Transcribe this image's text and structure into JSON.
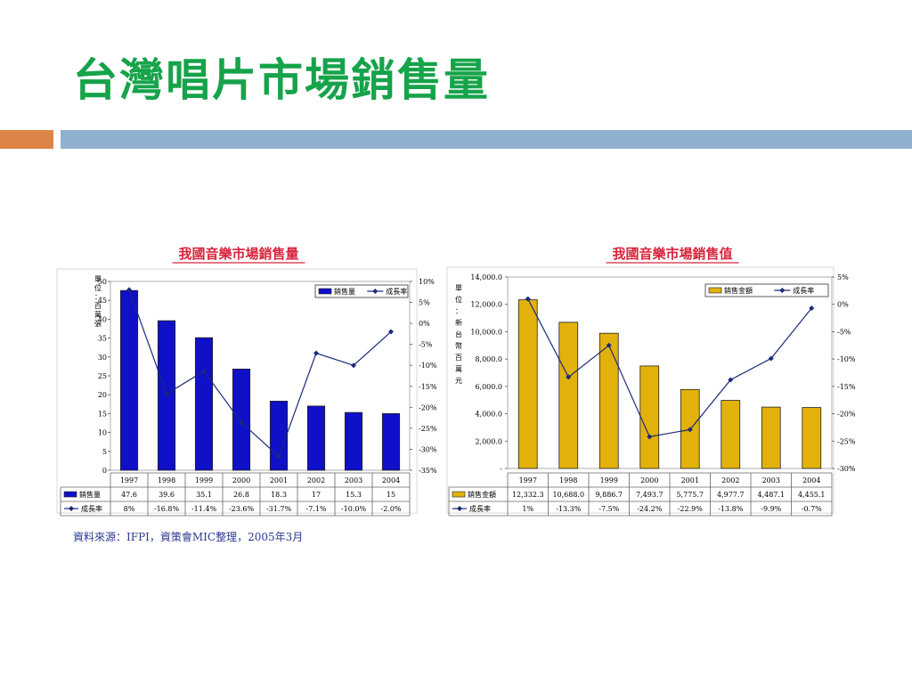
{
  "slide": {
    "title": "台灣唱片市場銷售量",
    "source": "資料來源：IFPI，資策會MIC整理，2005年3月"
  },
  "chart_data": [
    {
      "type": "bar",
      "title": "我國音樂市場銷售量",
      "ylabel_left": "單位：百萬張",
      "categories": [
        "1997",
        "1998",
        "1999",
        "2000",
        "2001",
        "2002",
        "2003",
        "2004"
      ],
      "series": [
        {
          "name": "銷售量",
          "type": "bar",
          "axis": "left",
          "values": [
            47.6,
            39.6,
            35.1,
            26.8,
            18.3,
            17,
            15.3,
            15
          ],
          "labels": [
            "47.6",
            "39.6",
            "35.1",
            "26.8",
            "18.3",
            "17",
            "15.3",
            "15"
          ]
        },
        {
          "name": "成長率",
          "type": "line",
          "axis": "right",
          "values": [
            8,
            -16.8,
            -11.4,
            -23.6,
            -31.7,
            -7.1,
            -10.0,
            -2.0
          ],
          "labels": [
            "8%",
            "-16.8%",
            "-11.4%",
            "-23.6%",
            "-31.7%",
            "-7.1%",
            "-10.0%",
            "-2.0%"
          ]
        }
      ],
      "left_axis": {
        "range": [
          0,
          50
        ],
        "ticks": [
          "0",
          "5",
          "10",
          "15",
          "20",
          "25",
          "30",
          "35",
          "40",
          "45",
          "50"
        ]
      },
      "right_axis": {
        "range": [
          -35,
          10
        ],
        "ticks": [
          "10%",
          "5%",
          "0%",
          "-5%",
          "-10%",
          "-15%",
          "-20%",
          "-25%",
          "-30%",
          "-35%"
        ]
      },
      "legend_position": "top-right",
      "bar_color": "#1010c8",
      "line_color": "#1a2a7a"
    },
    {
      "type": "bar",
      "title": "我國音樂市場銷售值",
      "ylabel_left": "單位：新台幣百萬元",
      "categories": [
        "1997",
        "1998",
        "1999",
        "2000",
        "2001",
        "2002",
        "2003",
        "2004"
      ],
      "series": [
        {
          "name": "銷售金額",
          "type": "bar",
          "axis": "left",
          "values": [
            12332.3,
            10688.0,
            9886.7,
            7493.7,
            5775.7,
            4977.7,
            4487.1,
            4455.1
          ],
          "labels": [
            "12,332.3",
            "10,688.0",
            "9,886.7",
            "7,493.7",
            "5,775.7",
            "4,977.7",
            "4,487.1",
            "4,455.1"
          ]
        },
        {
          "name": "成長率",
          "type": "line",
          "axis": "right",
          "values": [
            1,
            -13.3,
            -7.5,
            -24.2,
            -22.9,
            -13.8,
            -9.9,
            -0.7
          ],
          "labels": [
            "1%",
            "-13.3%",
            "-7.5%",
            "-24.2%",
            "-22.9%",
            "-13.8%",
            "-9.9%",
            "-0.7%"
          ]
        }
      ],
      "left_axis": {
        "range": [
          0,
          14000
        ],
        "ticks": [
          "-",
          "2,000.0",
          "4,000.0",
          "6,000.0",
          "8,000.0",
          "10,000.0",
          "12,000.0",
          "14,000.0"
        ]
      },
      "right_axis": {
        "range": [
          -30,
          5
        ],
        "ticks": [
          "5%",
          "0%",
          "-5%",
          "-10%",
          "-15%",
          "-20%",
          "-25%",
          "-30%"
        ]
      },
      "legend_position": "top-right",
      "bar_color": "#e2b10c",
      "line_color": "#1a2a7a"
    }
  ]
}
